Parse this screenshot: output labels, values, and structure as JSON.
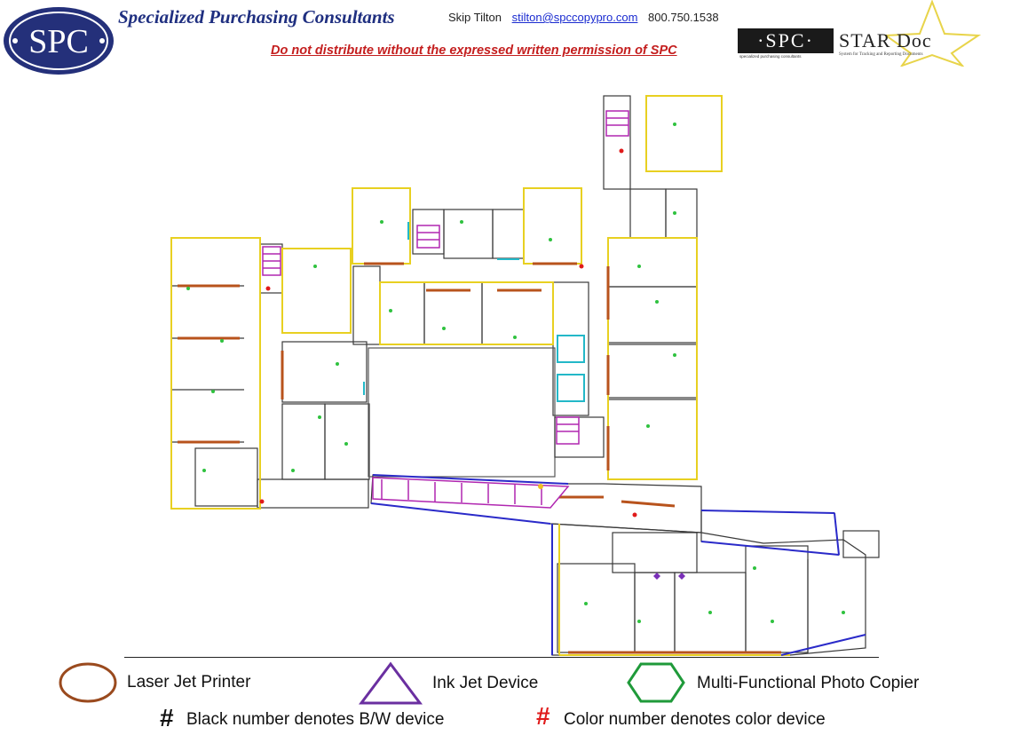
{
  "header": {
    "logo_text": "SPC",
    "company_name": "Specialized Purchasing Consultants",
    "contact_name": "Skip Tilton",
    "contact_email": "stilton@spccopypro.com",
    "contact_phone": "800.750.1538",
    "notice": "Do not distribute without the expressed written permission of SPC",
    "star_logo_box": "·SPC·",
    "star_logo_box_sub": "specialized purchasing consultants",
    "star_logo_title": "STAR Doc",
    "star_logo_sub": "System for Tracking and Reporting Documents"
  },
  "legend": {
    "laser_label": "Laser Jet Printer",
    "inkjet_label": "Ink Jet Device",
    "mfp_label": "Multi-Functional Photo Copier",
    "bw_label": "Black number denotes B/W device",
    "color_label": "Color number denotes color device",
    "hash_symbol": "#",
    "colors": {
      "laser": "#9a4a1e",
      "inkjet": "#6a2fa0",
      "mfp": "#1f9a3a",
      "color_number": "#e01b1b"
    }
  }
}
